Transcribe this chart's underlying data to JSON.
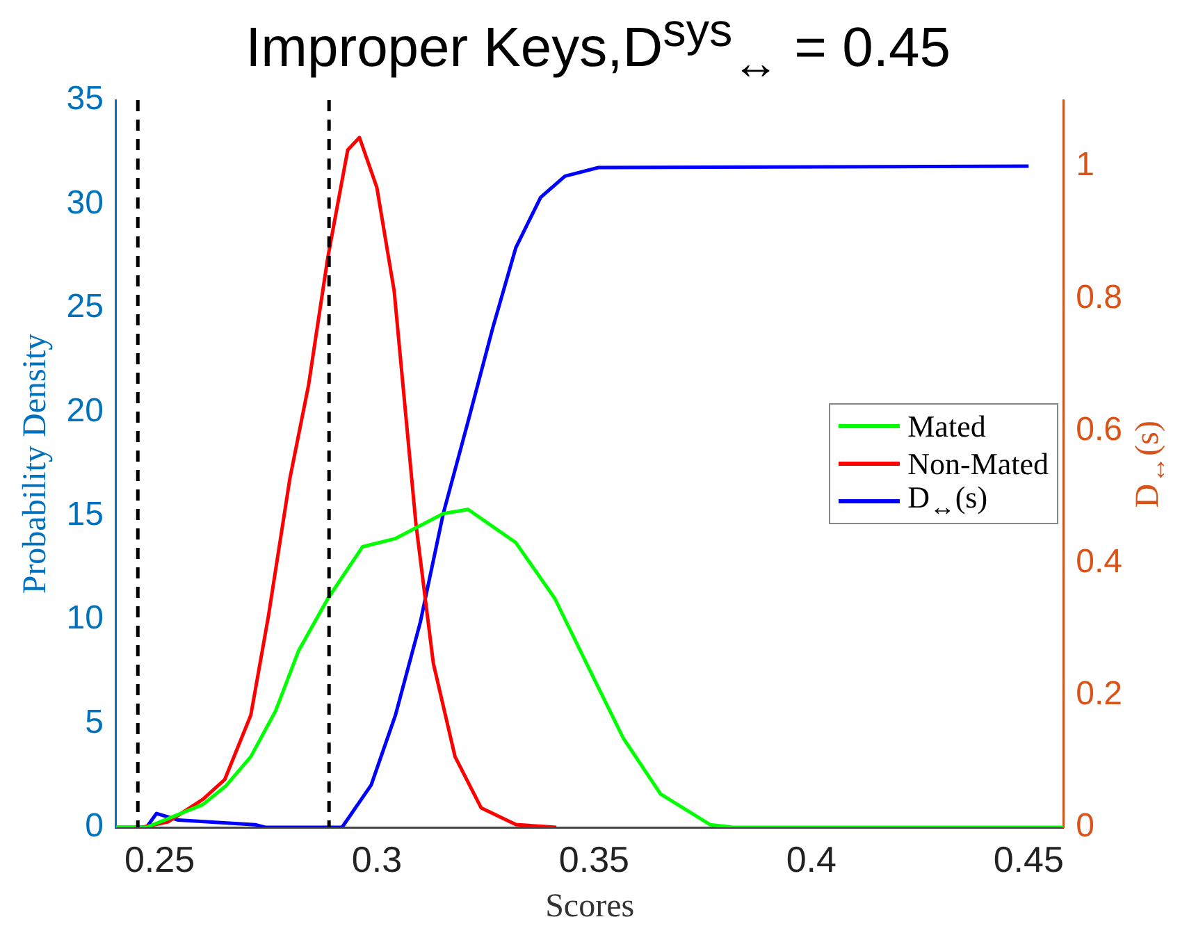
{
  "chart_data": {
    "type": "line",
    "title": "Improper Keys,D$^{sys}$$_{↔}$ = 0.45",
    "xlabel": "Scores",
    "ylabel": "Probability Density",
    "y2label": "D$_{↔}$(s)",
    "xlim": [
      0.24,
      0.458
    ],
    "xticks": [
      0.25,
      0.3,
      0.35,
      0.4,
      0.45
    ],
    "ylim": [
      0,
      35
    ],
    "yticks": [
      0,
      5,
      10,
      15,
      20,
      25,
      30,
      35
    ],
    "y2lim": [
      0,
      1.1
    ],
    "y2ticks": [
      0,
      0.2,
      0.4,
      0.6,
      0.8,
      1
    ],
    "grid": false,
    "legend": "right",
    "marker": "none",
    "series": [
      {
        "name": "Mated",
        "color": "#00ff00",
        "x": [
          0.24,
          0.247,
          0.26,
          0.2653,
          0.271,
          0.2767,
          0.282,
          0.2887,
          0.2967,
          0.3043,
          0.3153,
          0.321,
          0.332,
          0.341,
          0.3487,
          0.3567,
          0.3653,
          0.3767,
          0.382,
          0.458
        ],
        "values": [
          0,
          0,
          1.1,
          2.0,
          3.4,
          5.6,
          8.5,
          11.0,
          13.5,
          13.9,
          15.1,
          15.3,
          13.7,
          11.0,
          7.7,
          4.3,
          1.6,
          0.13,
          0,
          0
        ]
      },
      {
        "name": "Non-Mated",
        "color": "#ff0000",
        "x": [
          0.24,
          0.246,
          0.252,
          0.26,
          0.265,
          0.271,
          0.275,
          0.28,
          0.2843,
          0.2887,
          0.2933,
          0.296,
          0.3,
          0.304,
          0.309,
          0.313,
          0.318,
          0.324,
          0.332,
          0.3413
        ],
        "values": [
          0,
          0,
          0.27,
          1.35,
          2.3,
          5.4,
          10.1,
          16.8,
          21.3,
          27.4,
          32.6,
          33.2,
          30.8,
          25.8,
          14.6,
          7.9,
          3.4,
          0.94,
          0.13,
          0
        ]
      },
      {
        "name": "D$_{↔}$(s)",
        "color": "#0000ff",
        "axis": "y2",
        "x": [
          0.2453,
          0.247,
          0.2493,
          0.2543,
          0.272,
          0.2743,
          0.292,
          0.2987,
          0.3043,
          0.31,
          0.3153,
          0.321,
          0.3267,
          0.332,
          0.3377,
          0.3433,
          0.351,
          0.45
        ],
        "values": [
          0,
          0,
          0.021,
          0.011,
          0.004,
          0,
          0,
          0.064,
          0.17,
          0.31,
          0.475,
          0.614,
          0.756,
          0.877,
          0.953,
          0.985,
          0.998,
          1.0
        ]
      }
    ],
    "ref_lines": [
      {
        "axis": "x",
        "value": 0.245,
        "color": "#000000",
        "line_style": "dashed"
      },
      {
        "axis": "x",
        "value": 0.289,
        "color": "#000000",
        "line_style": "dashed"
      }
    ]
  }
}
